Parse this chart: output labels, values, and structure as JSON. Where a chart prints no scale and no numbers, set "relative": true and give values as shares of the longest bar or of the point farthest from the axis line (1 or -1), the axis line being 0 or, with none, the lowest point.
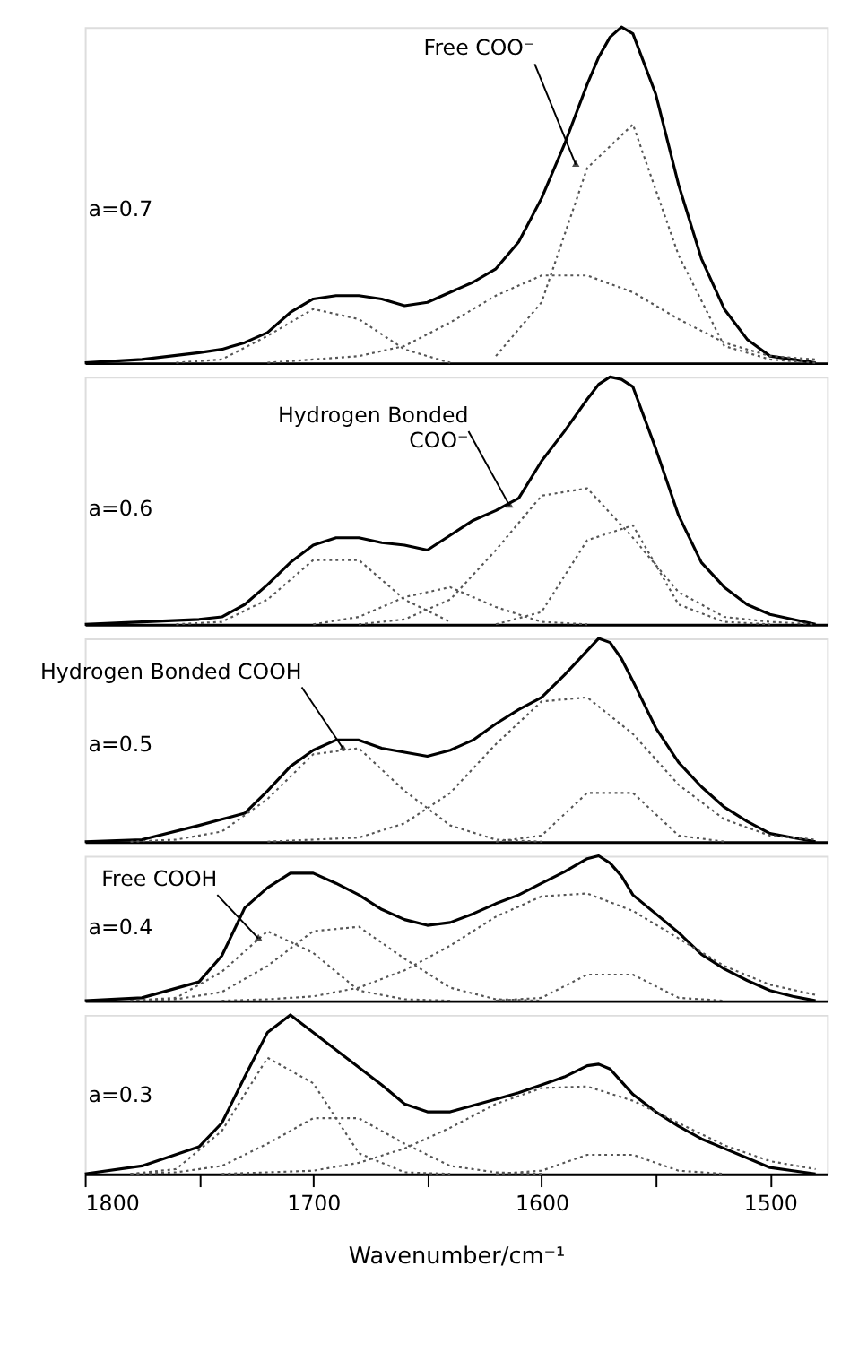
{
  "chart_data": [
    {
      "type": "line",
      "relative": true,
      "xlim": [
        1800,
        1475
      ],
      "tick_labels": false,
      "annotations": [
        "a=0.7",
        {
          "text": "Free COO⁻",
          "x": 1585,
          "y": 0.59
        }
      ],
      "series": [
        {
          "color": "#000000",
          "line_style": "solid",
          "x": [
            1800,
            1775,
            1750,
            1740,
            1730,
            1720,
            1710,
            1700,
            1690,
            1680,
            1670,
            1660,
            1650,
            1640,
            1630,
            1620,
            1610,
            1600,
            1590,
            1580,
            1575,
            1570,
            1565,
            1560,
            1550,
            1540,
            1530,
            1520,
            1510,
            1500,
            1490,
            1480
          ],
          "values": [
            0,
            0.01,
            0.03,
            0.04,
            0.06,
            0.09,
            0.15,
            0.19,
            0.2,
            0.2,
            0.19,
            0.17,
            0.18,
            0.21,
            0.24,
            0.28,
            0.36,
            0.49,
            0.65,
            0.83,
            0.91,
            0.97,
            1,
            0.98,
            0.8,
            0.53,
            0.31,
            0.16,
            0.07,
            0.02,
            0.01,
            0
          ]
        },
        {
          "color": "#555555",
          "line_style": "dotted",
          "x": [
            1620,
            1600,
            1580,
            1560,
            1540,
            1520,
            1500,
            1480
          ],
          "values": [
            0.02,
            0.18,
            0.58,
            0.71,
            0.32,
            0.05,
            0.01,
            0
          ]
        },
        {
          "color": "#555555",
          "line_style": "dotted",
          "x": [
            1720,
            1700,
            1680,
            1660,
            1640,
            1620,
            1600,
            1580,
            1560,
            1540,
            1520,
            1500,
            1480
          ],
          "values": [
            0,
            0.01,
            0.02,
            0.05,
            0.12,
            0.2,
            0.26,
            0.26,
            0.21,
            0.13,
            0.06,
            0.02,
            0.01
          ]
        },
        {
          "color": "#555555",
          "line_style": "dotted",
          "x": [
            1760,
            1740,
            1720,
            1700,
            1680,
            1660,
            1640
          ],
          "values": [
            0,
            0.01,
            0.08,
            0.16,
            0.13,
            0.04,
            0
          ]
        }
      ]
    },
    {
      "type": "line",
      "relative": true,
      "xlim": [
        1800,
        1475
      ],
      "tick_labels": false,
      "annotations": [
        "a=0.6",
        {
          "text": "Hydrogen Bonded\nCOO⁻",
          "x": 1614,
          "y": 0.48
        }
      ],
      "series": [
        {
          "color": "#000000",
          "line_style": "solid",
          "x": [
            1800,
            1775,
            1750,
            1740,
            1730,
            1720,
            1710,
            1700,
            1690,
            1680,
            1670,
            1660,
            1650,
            1640,
            1630,
            1620,
            1610,
            1600,
            1590,
            1580,
            1575,
            1570,
            1565,
            1560,
            1550,
            1540,
            1530,
            1520,
            1510,
            1500,
            1490,
            1480
          ],
          "values": [
            0,
            0.01,
            0.02,
            0.03,
            0.08,
            0.16,
            0.25,
            0.32,
            0.35,
            0.35,
            0.33,
            0.32,
            0.3,
            0.36,
            0.42,
            0.46,
            0.51,
            0.66,
            0.78,
            0.91,
            0.97,
            1,
            0.99,
            0.96,
            0.71,
            0.44,
            0.25,
            0.15,
            0.08,
            0.04,
            0.02,
            0
          ]
        },
        {
          "color": "#555555",
          "line_style": "dotted",
          "x": [
            1620,
            1600,
            1580,
            1560,
            1540,
            1520,
            1500
          ],
          "values": [
            0,
            0.05,
            0.34,
            0.4,
            0.08,
            0.01,
            0
          ]
        },
        {
          "color": "#555555",
          "line_style": "dotted",
          "x": [
            1680,
            1660,
            1640,
            1620,
            1600,
            1580,
            1560,
            1540,
            1520,
            1500,
            1480
          ],
          "values": [
            0,
            0.02,
            0.1,
            0.3,
            0.52,
            0.55,
            0.35,
            0.13,
            0.03,
            0.01,
            0
          ]
        },
        {
          "color": "#555555",
          "line_style": "dotted",
          "x": [
            1760,
            1740,
            1720,
            1700,
            1680,
            1660,
            1640
          ],
          "values": [
            0,
            0.01,
            0.1,
            0.26,
            0.26,
            0.1,
            0.01
          ]
        },
        {
          "color": "#555555",
          "line_style": "dotted",
          "x": [
            1700,
            1680,
            1660,
            1640,
            1620,
            1600,
            1580
          ],
          "values": [
            0,
            0.03,
            0.11,
            0.15,
            0.07,
            0.01,
            0
          ]
        }
      ]
    },
    {
      "type": "line",
      "relative": true,
      "xlim": [
        1800,
        1475
      ],
      "tick_labels": false,
      "annotations": [
        "a=0.5",
        {
          "text": "Hydrogen Bonded COOH",
          "x": 1687,
          "y": 0.46
        }
      ],
      "series": [
        {
          "color": "#000000",
          "line_style": "solid",
          "x": [
            1800,
            1775,
            1750,
            1740,
            1730,
            1720,
            1710,
            1700,
            1690,
            1680,
            1670,
            1660,
            1650,
            1640,
            1630,
            1620,
            1610,
            1600,
            1590,
            1580,
            1575,
            1570,
            1565,
            1560,
            1550,
            1540,
            1530,
            1520,
            1510,
            1500,
            1490,
            1480
          ],
          "values": [
            0,
            0.01,
            0.08,
            0.11,
            0.14,
            0.25,
            0.37,
            0.45,
            0.5,
            0.5,
            0.46,
            0.44,
            0.42,
            0.45,
            0.5,
            0.58,
            0.65,
            0.71,
            0.82,
            0.94,
            1,
            0.98,
            0.9,
            0.79,
            0.56,
            0.39,
            0.27,
            0.17,
            0.1,
            0.04,
            0.02,
            0
          ]
        },
        {
          "color": "#555555",
          "line_style": "dotted",
          "x": [
            1620,
            1600,
            1580,
            1560,
            1540,
            1520
          ],
          "values": [
            0,
            0.03,
            0.24,
            0.24,
            0.03,
            0
          ]
        },
        {
          "color": "#555555",
          "line_style": "dotted",
          "x": [
            1720,
            1700,
            1680,
            1660,
            1640,
            1620,
            1600,
            1580,
            1560,
            1540,
            1520,
            1500,
            1480
          ],
          "values": [
            0,
            0.01,
            0.02,
            0.09,
            0.24,
            0.48,
            0.69,
            0.71,
            0.53,
            0.28,
            0.11,
            0.03,
            0.01
          ]
        },
        {
          "color": "#555555",
          "line_style": "dotted",
          "x": [
            1780,
            1760,
            1740,
            1720,
            1700,
            1680,
            1660,
            1640,
            1620,
            1600
          ],
          "values": [
            0,
            0.01,
            0.05,
            0.21,
            0.43,
            0.46,
            0.25,
            0.08,
            0.01,
            0
          ]
        }
      ]
    },
    {
      "type": "line",
      "relative": true,
      "xlim": [
        1800,
        1475
      ],
      "tick_labels": false,
      "annotations": [
        "a=0.4",
        {
          "text": "Free COOH",
          "x": 1724,
          "y": 0.43
        }
      ],
      "series": [
        {
          "color": "#000000",
          "line_style": "solid",
          "x": [
            1800,
            1775,
            1750,
            1740,
            1730,
            1720,
            1710,
            1700,
            1690,
            1680,
            1670,
            1660,
            1650,
            1640,
            1630,
            1620,
            1610,
            1600,
            1590,
            1580,
            1575,
            1570,
            1565,
            1560,
            1550,
            1540,
            1530,
            1520,
            1510,
            1500,
            1490,
            1480
          ],
          "values": [
            0,
            0.02,
            0.13,
            0.31,
            0.64,
            0.78,
            0.88,
            0.88,
            0.81,
            0.73,
            0.63,
            0.56,
            0.52,
            0.54,
            0.6,
            0.67,
            0.73,
            0.81,
            0.89,
            0.98,
            1,
            0.95,
            0.86,
            0.73,
            0.6,
            0.47,
            0.32,
            0.22,
            0.14,
            0.07,
            0.03,
            0
          ]
        },
        {
          "color": "#555555",
          "line_style": "dotted",
          "x": [
            1780,
            1760,
            1740,
            1720,
            1700,
            1680,
            1660,
            1640
          ],
          "values": [
            0,
            0.02,
            0.2,
            0.48,
            0.33,
            0.07,
            0.01,
            0
          ]
        },
        {
          "color": "#555555",
          "line_style": "dotted",
          "x": [
            1780,
            1760,
            1740,
            1720,
            1700,
            1680,
            1660,
            1640,
            1620,
            1600
          ],
          "values": [
            0,
            0.01,
            0.06,
            0.24,
            0.48,
            0.51,
            0.29,
            0.09,
            0.01,
            0
          ]
        },
        {
          "color": "#555555",
          "line_style": "dotted",
          "x": [
            1740,
            1720,
            1700,
            1680,
            1660,
            1640,
            1620,
            1600,
            1580,
            1560,
            1540,
            1520,
            1500,
            1480
          ],
          "values": [
            0,
            0.01,
            0.03,
            0.09,
            0.21,
            0.38,
            0.58,
            0.72,
            0.74,
            0.62,
            0.43,
            0.24,
            0.11,
            0.04
          ]
        },
        {
          "color": "#555555",
          "line_style": "dotted",
          "x": [
            1620,
            1600,
            1580,
            1560,
            1540,
            1520
          ],
          "values": [
            0,
            0.02,
            0.18,
            0.18,
            0.02,
            0
          ]
        }
      ]
    },
    {
      "type": "line",
      "relative": true,
      "xlim": [
        1800,
        1475
      ],
      "xticks": [
        1800,
        {
          "value": 1750,
          "label": null
        },
        1700,
        {
          "value": 1650,
          "label": null
        },
        1600,
        {
          "value": 1550,
          "label": null
        },
        1500
      ],
      "tick_labels": "x",
      "xlabel": "Wavenumber/cm⁻¹",
      "annotations": [
        "a=0.3"
      ],
      "series": [
        {
          "color": "#000000",
          "line_style": "solid",
          "x": [
            1800,
            1775,
            1750,
            1740,
            1730,
            1720,
            1710,
            1700,
            1690,
            1680,
            1670,
            1660,
            1650,
            1640,
            1630,
            1620,
            1610,
            1600,
            1590,
            1580,
            1575,
            1570,
            1565,
            1560,
            1550,
            1540,
            1530,
            1520,
            1510,
            1500,
            1490,
            1480
          ],
          "values": [
            0,
            0.05,
            0.17,
            0.32,
            0.61,
            0.89,
            1,
            0.89,
            0.78,
            0.67,
            0.56,
            0.44,
            0.39,
            0.39,
            0.43,
            0.47,
            0.51,
            0.56,
            0.61,
            0.68,
            0.69,
            0.66,
            0.58,
            0.5,
            0.39,
            0.3,
            0.22,
            0.16,
            0.1,
            0.04,
            0.02,
            0
          ]
        },
        {
          "color": "#555555",
          "line_style": "dotted",
          "x": [
            1780,
            1760,
            1740,
            1720,
            1700,
            1680,
            1660,
            1640
          ],
          "values": [
            0,
            0.03,
            0.27,
            0.73,
            0.57,
            0.13,
            0.01,
            0
          ]
        },
        {
          "color": "#555555",
          "line_style": "dotted",
          "x": [
            1780,
            1760,
            1740,
            1720,
            1700,
            1680,
            1660,
            1640,
            1620,
            1600
          ],
          "values": [
            0,
            0.01,
            0.05,
            0.19,
            0.35,
            0.35,
            0.19,
            0.05,
            0.01,
            0
          ]
        },
        {
          "color": "#555555",
          "line_style": "dotted",
          "x": [
            1740,
            1720,
            1700,
            1680,
            1660,
            1640,
            1620,
            1600,
            1580,
            1560,
            1540,
            1520,
            1500,
            1480
          ],
          "values": [
            0,
            0.01,
            0.02,
            0.07,
            0.16,
            0.29,
            0.44,
            0.54,
            0.55,
            0.46,
            0.32,
            0.18,
            0.08,
            0.03
          ]
        },
        {
          "color": "#555555",
          "line_style": "dotted",
          "x": [
            1620,
            1600,
            1580,
            1560,
            1540,
            1520
          ],
          "values": [
            0,
            0.02,
            0.12,
            0.12,
            0.02,
            0
          ]
        }
      ]
    }
  ]
}
